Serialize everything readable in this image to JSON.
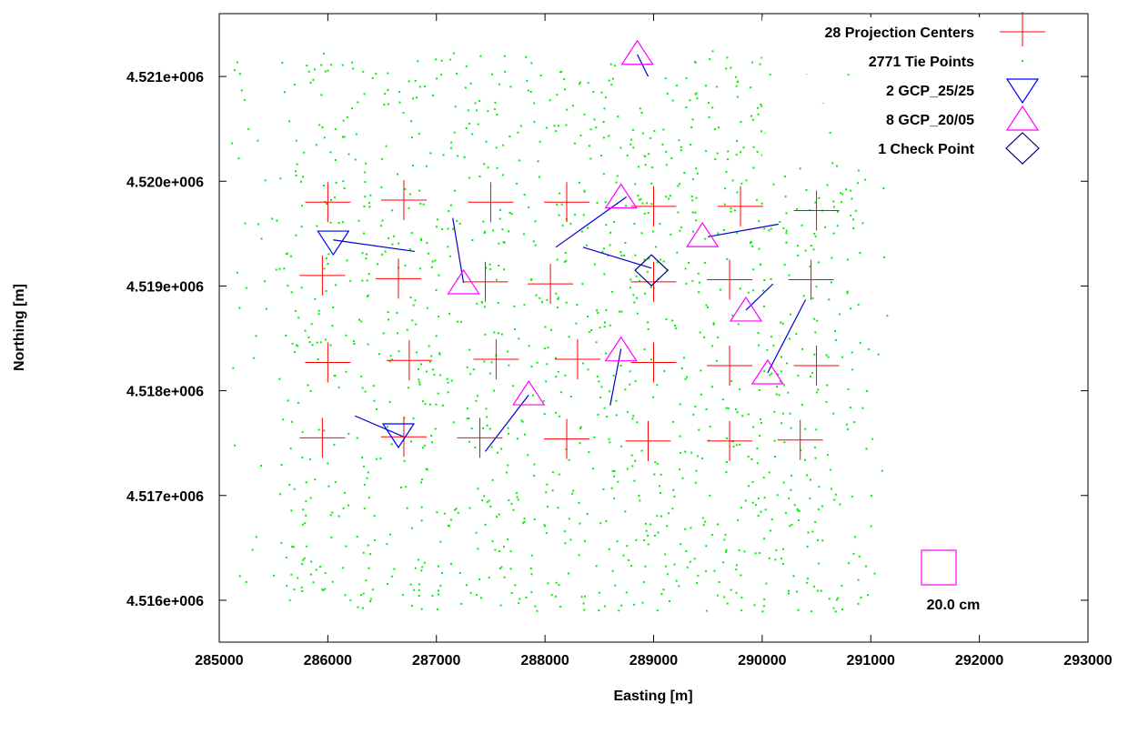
{
  "chart_data": {
    "type": "scatter",
    "title": "",
    "xlabel": "Easting [m]",
    "ylabel": "Northing [m]",
    "xlim": [
      285000,
      293000
    ],
    "ylim": [
      4515600,
      4521600
    ],
    "xticks": [
      285000,
      286000,
      287000,
      288000,
      289000,
      290000,
      291000,
      292000,
      293000
    ],
    "yticks": [
      4516000,
      4517000,
      4518000,
      4519000,
      4520000,
      4521000
    ],
    "xtick_labels": [
      "285000",
      "286000",
      "287000",
      "288000",
      "289000",
      "290000",
      "291000",
      "292000",
      "293000"
    ],
    "ytick_labels": [
      "4.516e+006",
      "4.517e+006",
      "4.518e+006",
      "4.519e+006",
      "4.520e+006",
      "4.521e+006"
    ],
    "grid": false,
    "legend_position": "top-right",
    "series": [
      {
        "name": "28 Projection Centers",
        "marker": "plus",
        "color": "#ff0000",
        "points": [
          [
            286000,
            4519800
          ],
          [
            286700,
            4519820
          ],
          [
            287500,
            4519800
          ],
          [
            288200,
            4519800
          ],
          [
            289000,
            4519760
          ],
          [
            289800,
            4519760
          ],
          [
            290500,
            4519720
          ],
          [
            285950,
            4519100
          ],
          [
            286650,
            4519070
          ],
          [
            287450,
            4519040
          ],
          [
            288050,
            4519020
          ],
          [
            289000,
            4519040
          ],
          [
            289700,
            4519060
          ],
          [
            290450,
            4519060
          ],
          [
            286000,
            4518270
          ],
          [
            286750,
            4518290
          ],
          [
            287550,
            4518300
          ],
          [
            288300,
            4518300
          ],
          [
            289000,
            4518270
          ],
          [
            289700,
            4518240
          ],
          [
            290500,
            4518240
          ],
          [
            285950,
            4517550
          ],
          [
            286700,
            4517560
          ],
          [
            287400,
            4517550
          ],
          [
            288200,
            4517540
          ],
          [
            288950,
            4517520
          ],
          [
            289700,
            4517520
          ],
          [
            290350,
            4517530
          ]
        ]
      },
      {
        "name": "2771 Tie Points",
        "marker": "dot",
        "color": "#00ee00",
        "region": {
          "x": [
            285100,
            291150
          ],
          "y": [
            4515900,
            4521250
          ]
        },
        "count": 2771
      },
      {
        "name": "2 GCP_25/25",
        "marker": "triangle-down",
        "color": "#0000ff",
        "points": [
          [
            286050,
            4519420
          ],
          [
            286650,
            4517580
          ]
        ],
        "residual_vectors": [
          [
            286050,
            4519440,
            286800,
            4519330
          ],
          [
            286700,
            4517560,
            286250,
            4517760
          ]
        ]
      },
      {
        "name": "8 GCP_20/05",
        "marker": "triangle-up",
        "color": "#ff00ff",
        "points": [
          [
            288850,
            4521220
          ],
          [
            288700,
            4519850
          ],
          [
            289450,
            4519480
          ],
          [
            287250,
            4519030
          ],
          [
            289850,
            4518770
          ],
          [
            288700,
            4518390
          ],
          [
            290050,
            4518170
          ],
          [
            287850,
            4517970
          ]
        ],
        "residual_vectors": [
          [
            288850,
            4521210,
            288950,
            4521000
          ],
          [
            288750,
            4519850,
            288100,
            4519370
          ],
          [
            289500,
            4519470,
            290150,
            4519590
          ],
          [
            287250,
            4519030,
            287150,
            4519650
          ],
          [
            289850,
            4518770,
            290100,
            4519020
          ],
          [
            288700,
            4518400,
            288600,
            4517860
          ],
          [
            290050,
            4518170,
            290400,
            4518870
          ],
          [
            287850,
            4517960,
            287450,
            4517420
          ]
        ]
      },
      {
        "name": "1 Check Point",
        "marker": "diamond",
        "color": "#000080",
        "points": [
          [
            288980,
            4519150
          ]
        ],
        "residual_vectors": [
          [
            288980,
            4519170,
            288350,
            4519370
          ]
        ]
      }
    ],
    "scale_box": {
      "label": "20.0 cm",
      "color": "#ff00ff"
    }
  }
}
